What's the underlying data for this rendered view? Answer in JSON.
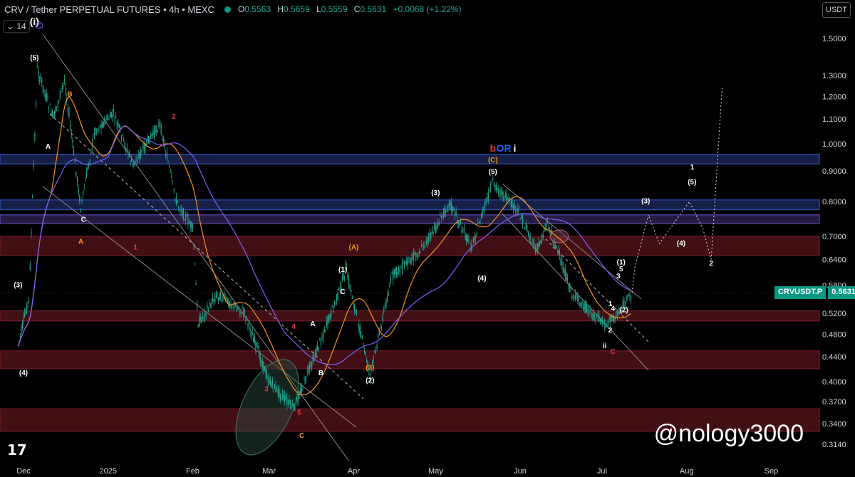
{
  "header": {
    "symbol": "CRV / Tether PERPETUAL FUTURES • 4h • MEXC",
    "open_label": "O",
    "open": "0.5563",
    "high_label": "H",
    "high": "0.5659",
    "low_label": "L",
    "low": "0.5559",
    "close_label": "C",
    "close": "0.5631",
    "change": "+0.0068 (+1.22%)"
  },
  "toolbar": {
    "interval": "14",
    "currency": "USDT"
  },
  "price_tag": {
    "symbol": "CRVUSDT.P",
    "value": "0.5631",
    "color": "#089981"
  },
  "watermark": "@nology3000",
  "colors": {
    "background": "#000000",
    "up": "#22ab94",
    "orange_ma": "#f7931a",
    "purple_ma": "#7b61ff",
    "zone_red": "#5a1a1f",
    "zone_blue": "#1c2a5a"
  },
  "chart_data": {
    "type": "candlestick",
    "title": "",
    "y_scale": "log",
    "y_ticks": [
      "1.5000",
      "1.3000",
      "1.2000",
      "1.1000",
      "1.0000",
      "0.9000",
      "0.8000",
      "0.7000",
      "0.6400",
      "0.5800",
      "0.5200",
      "0.4800",
      "0.4400",
      "0.4000",
      "0.3700",
      "0.3400",
      "0.3140"
    ],
    "x_ticks": [
      "Dec",
      "2025",
      "Feb",
      "Mar",
      "Apr",
      "May",
      "Jun",
      "Jul",
      "Aug",
      "Sep"
    ],
    "price_path": [
      {
        "t": "Nov 29",
        "p": 0.46
      },
      {
        "t": "Dec 3",
        "p": 0.55
      },
      {
        "t": "Dec 6",
        "p": 1.33
      },
      {
        "t": "Dec 12",
        "p": 1.1
      },
      {
        "t": "Dec 16",
        "p": 1.28
      },
      {
        "t": "Dec 22",
        "p": 0.78
      },
      {
        "t": "Dec 27",
        "p": 1.05
      },
      {
        "t": "Jan 3",
        "p": 1.12
      },
      {
        "t": "Jan 10",
        "p": 0.92
      },
      {
        "t": "Jan 20",
        "p": 1.08
      },
      {
        "t": "Jan 26",
        "p": 0.8
      },
      {
        "t": "Feb 1",
        "p": 0.72
      },
      {
        "t": "Feb 3",
        "p": 0.5
      },
      {
        "t": "Feb 10",
        "p": 0.56
      },
      {
        "t": "Feb 20",
        "p": 0.52
      },
      {
        "t": "Mar 1",
        "p": 0.4
      },
      {
        "t": "Mar 10",
        "p": 0.36
      },
      {
        "t": "Mar 20",
        "p": 0.47
      },
      {
        "t": "Mar 27",
        "p": 0.57
      },
      {
        "t": "Mar 29",
        "p": 0.62
      },
      {
        "t": "Apr 7",
        "p": 0.41
      },
      {
        "t": "Apr 15",
        "p": 0.6
      },
      {
        "t": "Apr 25",
        "p": 0.66
      },
      {
        "t": "May 1",
        "p": 0.72
      },
      {
        "t": "May 6",
        "p": 0.8
      },
      {
        "t": "May 14",
        "p": 0.67
      },
      {
        "t": "May 22",
        "p": 0.86
      },
      {
        "t": "Jun 1",
        "p": 0.76
      },
      {
        "t": "Jun 7",
        "p": 0.66
      },
      {
        "t": "Jun 11",
        "p": 0.74
      },
      {
        "t": "Jun 20",
        "p": 0.56
      },
      {
        "t": "Jun 27",
        "p": 0.52
      },
      {
        "t": "Jul 2",
        "p": 0.5
      },
      {
        "t": "Jul 7",
        "p": 0.52
      },
      {
        "t": "Jul 12",
        "p": 0.563
      }
    ],
    "projection": [
      {
        "t": "Jul 12",
        "p": 0.563
      },
      {
        "t": "Jul 13",
        "p": 0.62
      },
      {
        "t": "Jul 18",
        "p": 0.76
      },
      {
        "t": "Jul 22",
        "p": 0.68
      },
      {
        "t": "Aug 2",
        "p": 0.8
      },
      {
        "t": "Aug 7",
        "p": 0.72
      },
      {
        "t": "Aug 10",
        "p": 0.64
      },
      {
        "t": "Aug 14",
        "p": 1.24
      }
    ],
    "zones": [
      {
        "from": 0.925,
        "to": 0.96,
        "color": "blue"
      },
      {
        "from": 0.775,
        "to": 0.805,
        "color": "blue"
      },
      {
        "from": 0.735,
        "to": 0.76,
        "color": "purple"
      },
      {
        "from": 0.65,
        "to": 0.7,
        "color": "red"
      },
      {
        "from": 0.505,
        "to": 0.525,
        "color": "red"
      },
      {
        "from": 0.42,
        "to": 0.45,
        "color": "red"
      },
      {
        "from": 0.33,
        "to": 0.36,
        "color": "red"
      }
    ],
    "annotations": [
      {
        "text": "(i)",
        "t": "Dec 5",
        "p": 1.58,
        "color": "white"
      },
      {
        "text": "(5)",
        "t": "Dec 5",
        "p": 1.38,
        "color": "white"
      },
      {
        "text": "B",
        "t": "Dec 18",
        "p": 1.2,
        "color": "orange"
      },
      {
        "text": "2",
        "t": "Jan 25",
        "p": 1.1,
        "color": "red"
      },
      {
        "text": "b",
        "t": "May 22",
        "p": 0.97,
        "color": "red"
      },
      {
        "text": "OR",
        "t": "May 26",
        "p": 0.97,
        "color": "blue"
      },
      {
        "text": "i",
        "t": "May 30",
        "p": 0.97,
        "color": "white"
      },
      {
        "text": "(C)",
        "t": "May 22",
        "p": 0.93,
        "color": "orange"
      },
      {
        "text": "(5)",
        "t": "May 22",
        "p": 0.89,
        "color": "white"
      },
      {
        "text": "(3)",
        "t": "May 1",
        "p": 0.82,
        "color": "white"
      },
      {
        "text": "(4)",
        "t": "May 18",
        "p": 0.59,
        "color": "white"
      },
      {
        "text": "(A)",
        "t": "Apr 1",
        "p": 0.665,
        "color": "orange"
      },
      {
        "text": "(1)",
        "t": "Mar 28",
        "p": 0.61,
        "color": "white"
      },
      {
        "text": "C",
        "t": "Mar 28",
        "p": 0.56,
        "color": "white"
      },
      {
        "text": "A",
        "t": "Dec 10",
        "p": 0.98,
        "color": "white"
      },
      {
        "text": "C",
        "t": "Dec 23",
        "p": 0.74,
        "color": "white"
      },
      {
        "text": "A",
        "t": "Dec 22",
        "p": 0.68,
        "color": "orange"
      },
      {
        "text": "1",
        "t": "Jan 11",
        "p": 0.665,
        "color": "red"
      },
      {
        "text": "(3)",
        "t": "Nov 29",
        "p": 0.575,
        "color": "white"
      },
      {
        "text": "(4)",
        "t": "Dec 1",
        "p": 0.41,
        "color": "white"
      },
      {
        "text": "4",
        "t": "Mar 10",
        "p": 0.49,
        "color": "red"
      },
      {
        "text": "A",
        "t": "Mar 17",
        "p": 0.495,
        "color": "white"
      },
      {
        "text": "B",
        "t": "Mar 20",
        "p": 0.41,
        "color": "white"
      },
      {
        "text": "3",
        "t": "Feb 28",
        "p": 0.385,
        "color": "red"
      },
      {
        "text": "5",
        "t": "Mar 12",
        "p": 0.352,
        "color": "red"
      },
      {
        "text": "C",
        "t": "Mar 13",
        "p": 0.322,
        "color": "orange"
      },
      {
        "text": "(3)",
        "t": "Apr 7",
        "p": 0.418,
        "color": "orange"
      },
      {
        "text": "(2)",
        "t": "Apr 7",
        "p": 0.398,
        "color": "white"
      },
      {
        "text": "(1)",
        "t": "Jul 8",
        "p": 0.628,
        "color": "white"
      },
      {
        "text": "5",
        "t": "Jul 8",
        "p": 0.612,
        "color": "white"
      },
      {
        "text": "3",
        "t": "Jul 7",
        "p": 0.595,
        "color": "white"
      },
      {
        "text": "1",
        "t": "Jul 4",
        "p": 0.535,
        "color": "white"
      },
      {
        "text": "4",
        "t": "Jul 5",
        "p": 0.525,
        "color": "white"
      },
      {
        "text": "(2)",
        "t": "Jul 9",
        "p": 0.522,
        "color": "white"
      },
      {
        "text": "2",
        "t": "Jul 4",
        "p": 0.483,
        "color": "white"
      },
      {
        "text": "ii",
        "t": "Jul 2",
        "p": 0.455,
        "color": "white"
      },
      {
        "text": "C",
        "t": "Jul 5",
        "p": 0.445,
        "color": "red"
      },
      {
        "text": "(3)",
        "t": "Jul 17",
        "p": 0.795,
        "color": "white"
      },
      {
        "text": "1",
        "t": "Aug 3",
        "p": 0.905,
        "color": "white"
      },
      {
        "text": "(5)",
        "t": "Aug 3",
        "p": 0.855,
        "color": "white"
      },
      {
        "text": "(4)",
        "t": "Jul 30",
        "p": 0.675,
        "color": "white"
      },
      {
        "text": "2",
        "t": "Aug 10",
        "p": 0.625,
        "color": "white"
      }
    ]
  }
}
